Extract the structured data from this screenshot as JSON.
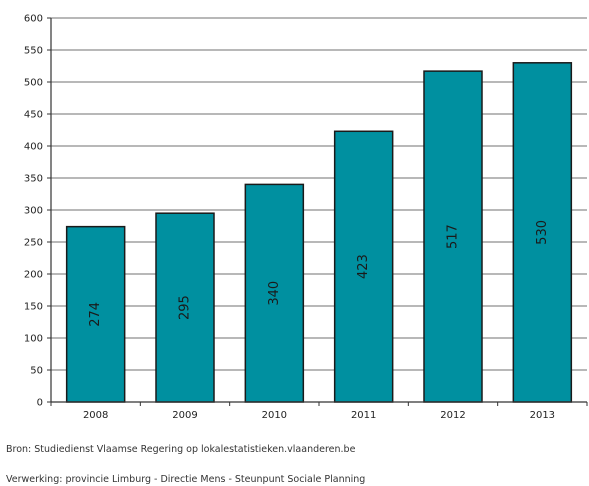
{
  "chart_data": {
    "type": "bar",
    "categories": [
      "2008",
      "2009",
      "2010",
      "2011",
      "2012",
      "2013"
    ],
    "values": [
      274,
      295,
      340,
      423,
      517,
      530
    ],
    "data_labels": [
      "274",
      "295",
      "340",
      "423",
      "517",
      "530"
    ],
    "title": "",
    "xlabel": "",
    "ylabel": "",
    "ylim": [
      0,
      600
    ],
    "yticks": [
      0,
      50,
      100,
      150,
      200,
      250,
      300,
      350,
      400,
      450,
      500,
      550,
      600
    ],
    "grid": true,
    "legend": false,
    "bar_color": "#0090a0",
    "bar_stroke": "#1a1a1a",
    "grid_color": "#a0a0a0"
  },
  "footnotes": {
    "source": "Bron: Studiedienst Vlaamse Regering op lokalestatistieken.vlaanderen.be",
    "processing": "Verwerking: provincie Limburg - Directie Mens - Steunpunt Sociale Planning"
  }
}
